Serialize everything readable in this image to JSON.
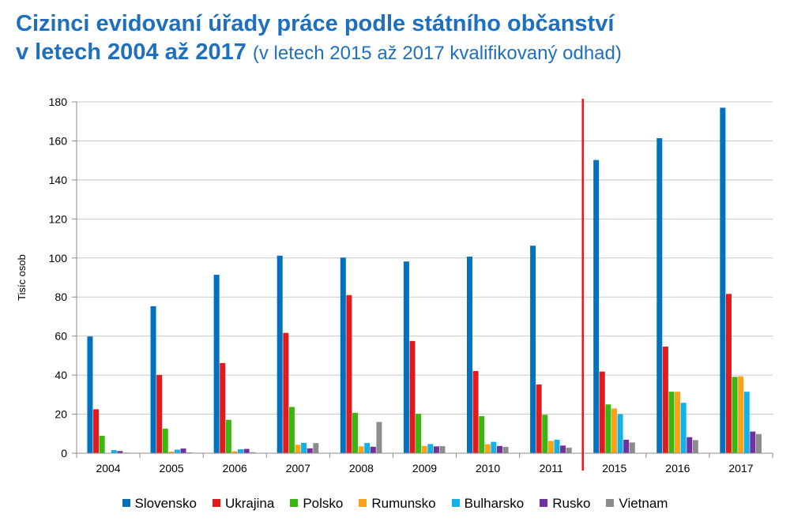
{
  "title": {
    "line1": "Cizinci evidovaní úřady práce podle státního občanství",
    "line2_bold": "v letech 2004 až 2017",
    "line2_note": "(v letech 2015 až 2017 kvalifikovaný odhad)"
  },
  "chart_data": {
    "type": "bar",
    "title": "Cizinci evidovaní úřady práce podle státního občanství v letech 2004 až 2017 (v letech 2015 až 2017 kvalifikovaný odhad)",
    "xlabel": "",
    "ylabel": "Tisíc osob",
    "ylim": [
      0,
      180
    ],
    "yticks": [
      0,
      20,
      40,
      60,
      80,
      100,
      120,
      140,
      160,
      180
    ],
    "grid": true,
    "legend_position": "bottom",
    "categories": [
      "2004",
      "2005",
      "2006",
      "2007",
      "2008",
      "2009",
      "2010",
      "2011",
      "2015",
      "2016",
      "2017"
    ],
    "separator_after": "2011",
    "separator_color": "#e8161b",
    "series": [
      {
        "name": "Slovensko",
        "color": "#0070c0",
        "values": [
          59.8,
          75.3,
          91.4,
          101.2,
          100.2,
          98.2,
          100.7,
          106.3,
          150.2,
          161.4,
          177.0
        ]
      },
      {
        "name": "Ukrajina",
        "color": "#e31a1c",
        "values": [
          22.5,
          40.1,
          46.2,
          61.6,
          81.0,
          57.5,
          42.1,
          35.2,
          41.8,
          54.6,
          81.6
        ]
      },
      {
        "name": "Polsko",
        "color": "#3ab60f",
        "values": [
          8.9,
          12.6,
          17.1,
          23.7,
          20.7,
          20.2,
          19.0,
          19.7,
          25.0,
          31.5,
          39.1
        ]
      },
      {
        "name": "Rumunsko",
        "color": "#f9a21c",
        "values": [
          0.2,
          0.8,
          1.0,
          4.3,
          3.5,
          3.7,
          4.6,
          6.3,
          22.9,
          31.5,
          39.4
        ]
      },
      {
        "name": "Bulharsko",
        "color": "#12b1ec",
        "values": [
          1.6,
          1.8,
          2.0,
          5.3,
          5.2,
          4.7,
          5.8,
          6.9,
          20.0,
          25.8,
          31.5
        ]
      },
      {
        "name": "Rusko",
        "color": "#7030a0",
        "values": [
          1.1,
          2.4,
          2.2,
          2.5,
          3.3,
          3.5,
          3.7,
          3.9,
          6.9,
          8.2,
          11.1
        ]
      },
      {
        "name": "Vietnam",
        "color": "#8c8c8c",
        "values": [
          0.3,
          0.4,
          0.5,
          5.2,
          16.0,
          3.6,
          3.2,
          2.8,
          5.5,
          6.7,
          9.8
        ]
      }
    ]
  }
}
